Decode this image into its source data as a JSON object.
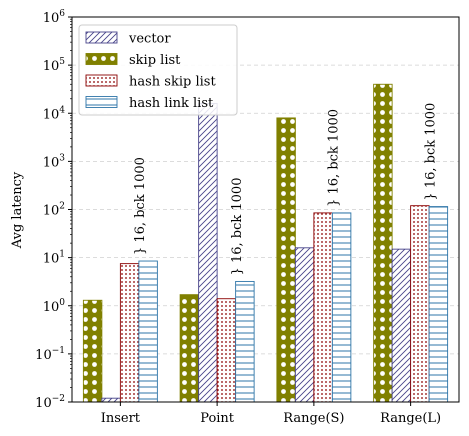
{
  "chart_data": {
    "type": "bar",
    "ylabel": "Avg latency",
    "yscale": "log",
    "ylim": [
      0.01,
      1000000
    ],
    "y_ticks": [
      {
        "value": 0.01,
        "base": "10",
        "exp": "−2"
      },
      {
        "value": 0.1,
        "base": "10",
        "exp": "−1"
      },
      {
        "value": 1,
        "base": "10",
        "exp": "0"
      },
      {
        "value": 10,
        "base": "10",
        "exp": "1"
      },
      {
        "value": 100,
        "base": "10",
        "exp": "2"
      },
      {
        "value": 1000,
        "base": "10",
        "exp": "3"
      },
      {
        "value": 10000,
        "base": "10",
        "exp": "4"
      },
      {
        "value": 100000,
        "base": "10",
        "exp": "5"
      },
      {
        "value": 1000000,
        "base": "10",
        "exp": "6"
      }
    ],
    "grid": "horizontal-dashed",
    "legend_position": "top-left",
    "categories": [
      "Insert",
      "Point",
      "Range(S)",
      "Range(L)"
    ],
    "series": [
      {
        "name": "skip list",
        "pattern": "circles",
        "color": "#808000",
        "values": [
          1.3,
          1.7,
          8000,
          40000
        ]
      },
      {
        "name": "vector",
        "pattern": "diagonal",
        "color": "#48448a",
        "values": [
          0.012,
          16000,
          16,
          15
        ]
      },
      {
        "name": "hash skip list",
        "pattern": "dots",
        "color": "#8b0000",
        "values": [
          7.5,
          1.4,
          85,
          120
        ]
      },
      {
        "name": "hash link list",
        "pattern": "horizontal",
        "color": "#2e75a8",
        "values": [
          8.5,
          3.2,
          85,
          115
        ]
      }
    ],
    "legend_order": [
      1,
      0,
      2,
      3
    ],
    "annotations": [
      {
        "category": 0,
        "value": 8.5,
        "text": "} 16, bck 1000"
      },
      {
        "category": 1,
        "value": 3.2,
        "text": "} 16, bck 1000"
      },
      {
        "category": 2,
        "value": 85,
        "text": "} 16, bck 1000"
      },
      {
        "category": 3,
        "value": 115,
        "text": "} 16, bck 1000"
      }
    ]
  }
}
